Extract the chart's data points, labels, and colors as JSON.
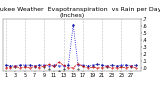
{
  "title": "Milwaukee Weather  Evapotranspiration  vs Rain per Day",
  "subtitle": "(Inches)",
  "ylim": [
    -0.05,
    0.7
  ],
  "xlim": [
    0.5,
    29
  ],
  "background": "#ffffff",
  "grid_color": "#888888",
  "days": [
    1,
    2,
    3,
    4,
    5,
    6,
    7,
    8,
    9,
    10,
    11,
    12,
    13,
    14,
    15,
    16,
    17,
    18,
    19,
    20,
    21,
    22,
    23,
    24,
    25,
    26,
    27,
    28
  ],
  "et_values": [
    0.04,
    0.03,
    0.03,
    0.04,
    0.04,
    0.04,
    0.03,
    0.04,
    0.04,
    0.03,
    0.04,
    0.03,
    0.03,
    0.04,
    0.62,
    0.04,
    0.04,
    0.03,
    0.04,
    0.05,
    0.04,
    0.03,
    0.04,
    0.03,
    0.04,
    0.04,
    0.03,
    0.04
  ],
  "rain_values": [
    0.0,
    0.0,
    0.02,
    0.0,
    0.01,
    0.0,
    0.02,
    0.0,
    0.03,
    0.05,
    0.02,
    0.08,
    0.04,
    0.0,
    0.0,
    0.06,
    0.02,
    0.0,
    0.01,
    0.0,
    0.0,
    0.02,
    0.0,
    0.0,
    0.01,
    0.0,
    0.02,
    0.0
  ],
  "net_values": [
    0.04,
    0.03,
    0.01,
    0.04,
    0.03,
    0.04,
    0.01,
    0.04,
    0.01,
    -0.02,
    0.02,
    -0.05,
    -0.01,
    0.04,
    0.62,
    -0.02,
    0.02,
    0.03,
    0.03,
    0.05,
    0.04,
    0.01,
    0.04,
    0.03,
    0.03,
    0.04,
    0.01,
    0.04
  ],
  "et_color": "#0000cc",
  "rain_color": "#cc0000",
  "net_color": "#000000",
  "yticks": [
    0.0,
    0.1,
    0.2,
    0.3,
    0.4,
    0.5,
    0.6,
    0.7
  ],
  "ytick_labels": [
    ".0",
    ".1",
    ".2",
    ".3",
    ".4",
    ".5",
    ".6",
    ".7"
  ],
  "xticks": [
    1,
    3,
    5,
    7,
    9,
    11,
    13,
    15,
    17,
    19,
    21,
    23,
    25,
    27
  ],
  "vgrid_positions": [
    1,
    5,
    9,
    13,
    17,
    21,
    25,
    29
  ],
  "title_fontsize": 4.5,
  "tick_fontsize": 3.5,
  "figsize": [
    1.6,
    0.87
  ],
  "dpi": 100
}
